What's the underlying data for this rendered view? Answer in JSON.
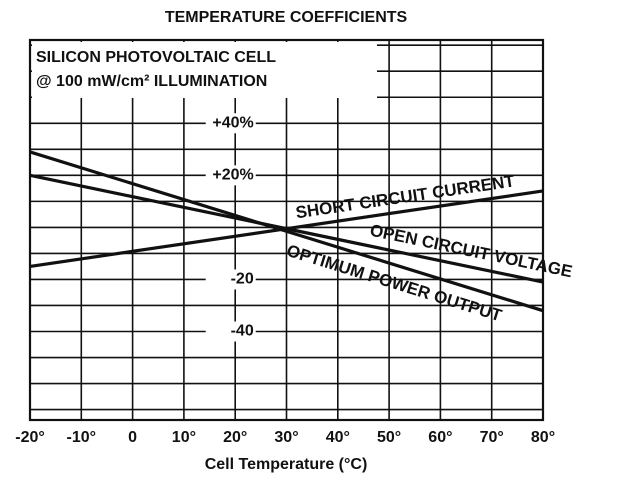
{
  "chart_data": {
    "type": "line",
    "title": "TEMPERATURE COEFFICIENTS",
    "annotations": [
      "SILICON PHOTOVOLTAIC CELL",
      "@ 100 mW/cm² ILLUMINATION"
    ],
    "x_label": "Cell Temperature (°C)",
    "x": [
      -20,
      80
    ],
    "series": [
      {
        "name": "SHORT CIRCUIT CURRENT",
        "color": "#111111",
        "values": [
          -15,
          14
        ]
      },
      {
        "name": "OPEN CIRCUIT VOLTAGE",
        "color": "#111111",
        "values": [
          20,
          -21
        ]
      },
      {
        "name": "OPTIMUM POWER OUTPUT",
        "color": "#111111",
        "values": [
          29,
          -32
        ]
      }
    ],
    "xlim": [
      -20,
      80
    ],
    "xticks": [
      {
        "value": -20,
        "label": "-20°"
      },
      {
        "value": -10,
        "label": "-10°"
      },
      {
        "value": 0,
        "label": "0"
      },
      {
        "value": 10,
        "label": "10°"
      },
      {
        "value": 20,
        "label": "20°"
      },
      {
        "value": 30,
        "label": "30°"
      },
      {
        "value": 40,
        "label": "40°"
      },
      {
        "value": 50,
        "label": "50°"
      },
      {
        "value": 60,
        "label": "60°"
      },
      {
        "value": 70,
        "label": "70°"
      },
      {
        "value": 80,
        "label": "80°"
      }
    ],
    "ylim": [
      -74,
      72
    ],
    "yticks": [
      {
        "value": 40,
        "label": "+40%"
      },
      {
        "value": 20,
        "label": "+20%"
      },
      {
        "value": -20,
        "label": "-20"
      },
      {
        "value": -40,
        "label": "-40"
      }
    ],
    "ygrid": [
      -70,
      -60,
      -50,
      -40,
      -30,
      -20,
      -10,
      0,
      10,
      20,
      30,
      40,
      50,
      60,
      70
    ],
    "grid": true
  }
}
